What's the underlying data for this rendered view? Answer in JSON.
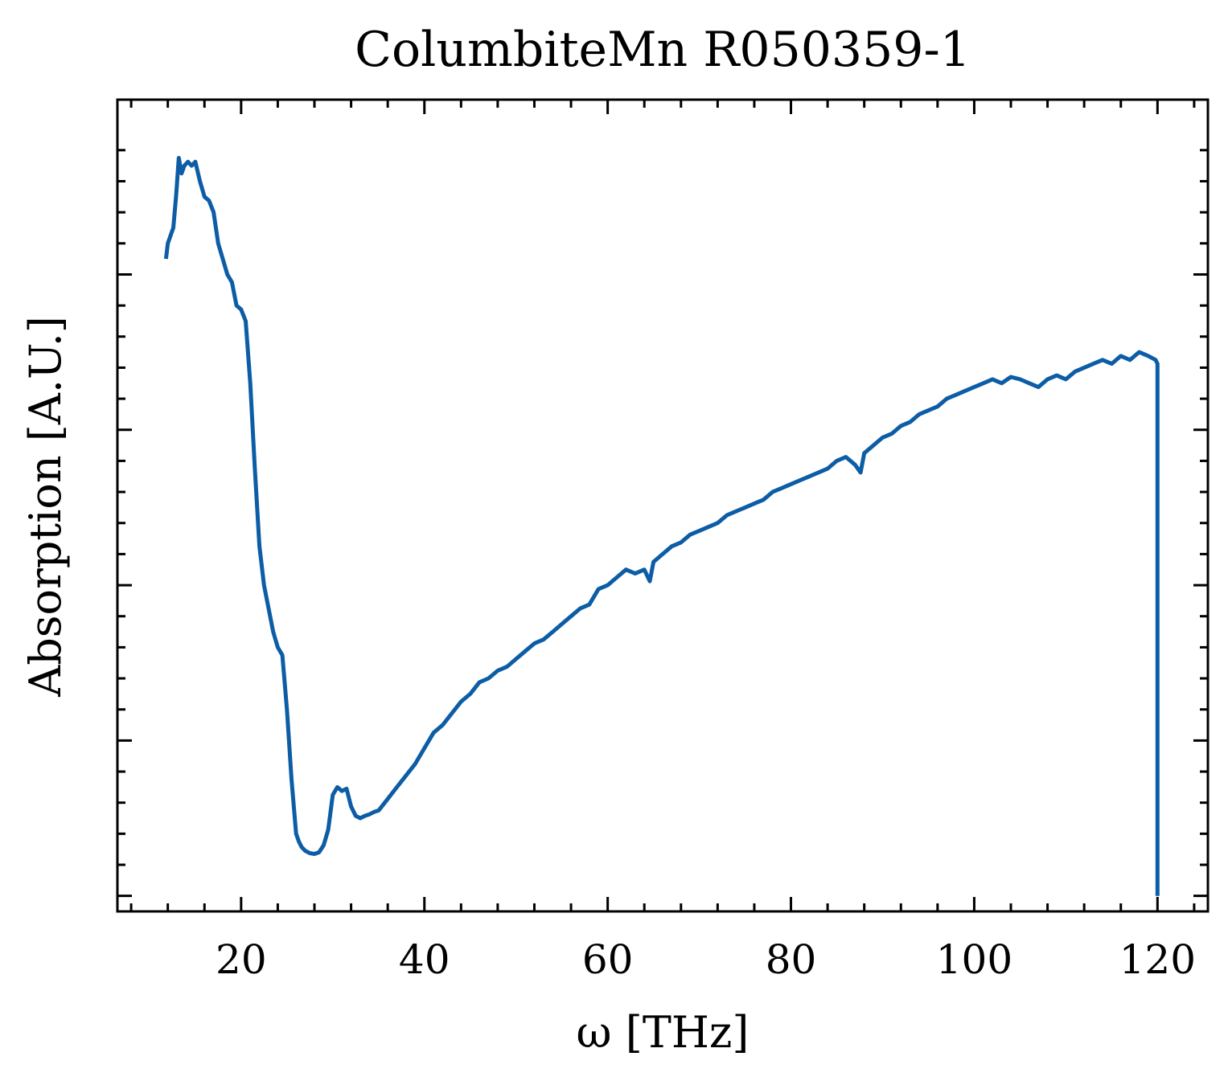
{
  "chart_data": {
    "type": "line",
    "title": "ColumbiteMn R050359-1",
    "xlabel": "ω [THz]",
    "ylabel": "Absorption [A.U.]",
    "xlim": [
      6.5,
      125.5
    ],
    "ylim": [
      -0.02,
      1.025
    ],
    "x_ticks": [
      20,
      40,
      60,
      80,
      100,
      120
    ],
    "x_tick_labels": [
      "20",
      "40",
      "60",
      "80",
      "100",
      "120"
    ],
    "y_ticks": [
      0.0,
      0.2,
      0.4,
      0.6,
      0.8
    ],
    "y_tick_labels_shown": false,
    "grid": false,
    "legend": "none",
    "line_color": "#0C5DA5",
    "series": [
      {
        "x": [
          11.8,
          12.0,
          12.3,
          12.6,
          12.9,
          13.2,
          13.5,
          13.8,
          14.2,
          14.6,
          15.0,
          15.5,
          16.0,
          16.5,
          17.0,
          17.5,
          18.0,
          18.5,
          19.0,
          19.5,
          20.0,
          20.5,
          21.0,
          21.5,
          22.0,
          22.5,
          23.0,
          23.5,
          24.0,
          24.5,
          25.0,
          25.5,
          26.0,
          26.3,
          26.6,
          27.0,
          27.5,
          28.0,
          28.5,
          29.0,
          29.5,
          30.0,
          30.5,
          31.0,
          31.5,
          32.0,
          32.5,
          33.0,
          33.5,
          34.0,
          34.5,
          35.0,
          36.0,
          37.0,
          38.0,
          39.0,
          40.0,
          41.0,
          42.0,
          43.0,
          44.0,
          45.0,
          46.0,
          47.0,
          48.0,
          49.0,
          50.0,
          51.0,
          52.0,
          53.0,
          54.0,
          55.0,
          56.0,
          57.0,
          58.0,
          59.0,
          60.0,
          61.0,
          62.0,
          63.0,
          64.0,
          64.6,
          65.0,
          66.0,
          67.0,
          68.0,
          69.0,
          70.0,
          71.0,
          72.0,
          73.0,
          74.0,
          75.0,
          76.0,
          77.0,
          78.0,
          79.0,
          80.0,
          81.0,
          82.0,
          83.0,
          84.0,
          85.0,
          86.0,
          87.0,
          87.6,
          88.0,
          89.0,
          90.0,
          91.0,
          92.0,
          93.0,
          94.0,
          95.0,
          96.0,
          97.0,
          98.0,
          99.0,
          100.0,
          101.0,
          102.0,
          103.0,
          104.0,
          105.0,
          106.0,
          107.0,
          108.0,
          109.0,
          110.0,
          111.0,
          112.0,
          113.0,
          114.0,
          115.0,
          116.0,
          117.0,
          118.0,
          119.0,
          119.8,
          120.0,
          120.0
        ],
        "y": [
          0.82,
          0.84,
          0.85,
          0.86,
          0.9,
          0.95,
          0.93,
          0.94,
          0.945,
          0.94,
          0.945,
          0.92,
          0.9,
          0.895,
          0.88,
          0.84,
          0.82,
          0.8,
          0.79,
          0.76,
          0.755,
          0.74,
          0.66,
          0.55,
          0.45,
          0.4,
          0.37,
          0.34,
          0.32,
          0.31,
          0.24,
          0.15,
          0.08,
          0.07,
          0.063,
          0.058,
          0.055,
          0.054,
          0.056,
          0.065,
          0.085,
          0.13,
          0.14,
          0.135,
          0.138,
          0.115,
          0.103,
          0.1,
          0.103,
          0.105,
          0.108,
          0.11,
          0.125,
          0.14,
          0.155,
          0.17,
          0.19,
          0.21,
          0.22,
          0.235,
          0.25,
          0.26,
          0.275,
          0.28,
          0.29,
          0.295,
          0.305,
          0.315,
          0.325,
          0.33,
          0.34,
          0.35,
          0.36,
          0.37,
          0.375,
          0.395,
          0.4,
          0.41,
          0.42,
          0.415,
          0.42,
          0.405,
          0.43,
          0.44,
          0.45,
          0.455,
          0.465,
          0.47,
          0.475,
          0.48,
          0.49,
          0.495,
          0.5,
          0.505,
          0.51,
          0.52,
          0.525,
          0.53,
          0.535,
          0.54,
          0.545,
          0.55,
          0.56,
          0.565,
          0.555,
          0.545,
          0.57,
          0.58,
          0.59,
          0.595,
          0.605,
          0.61,
          0.62,
          0.625,
          0.63,
          0.64,
          0.645,
          0.65,
          0.655,
          0.66,
          0.665,
          0.66,
          0.668,
          0.665,
          0.66,
          0.655,
          0.665,
          0.67,
          0.665,
          0.675,
          0.68,
          0.685,
          0.69,
          0.685,
          0.695,
          0.69,
          0.7,
          0.695,
          0.69,
          0.685,
          0.0
        ]
      }
    ]
  }
}
